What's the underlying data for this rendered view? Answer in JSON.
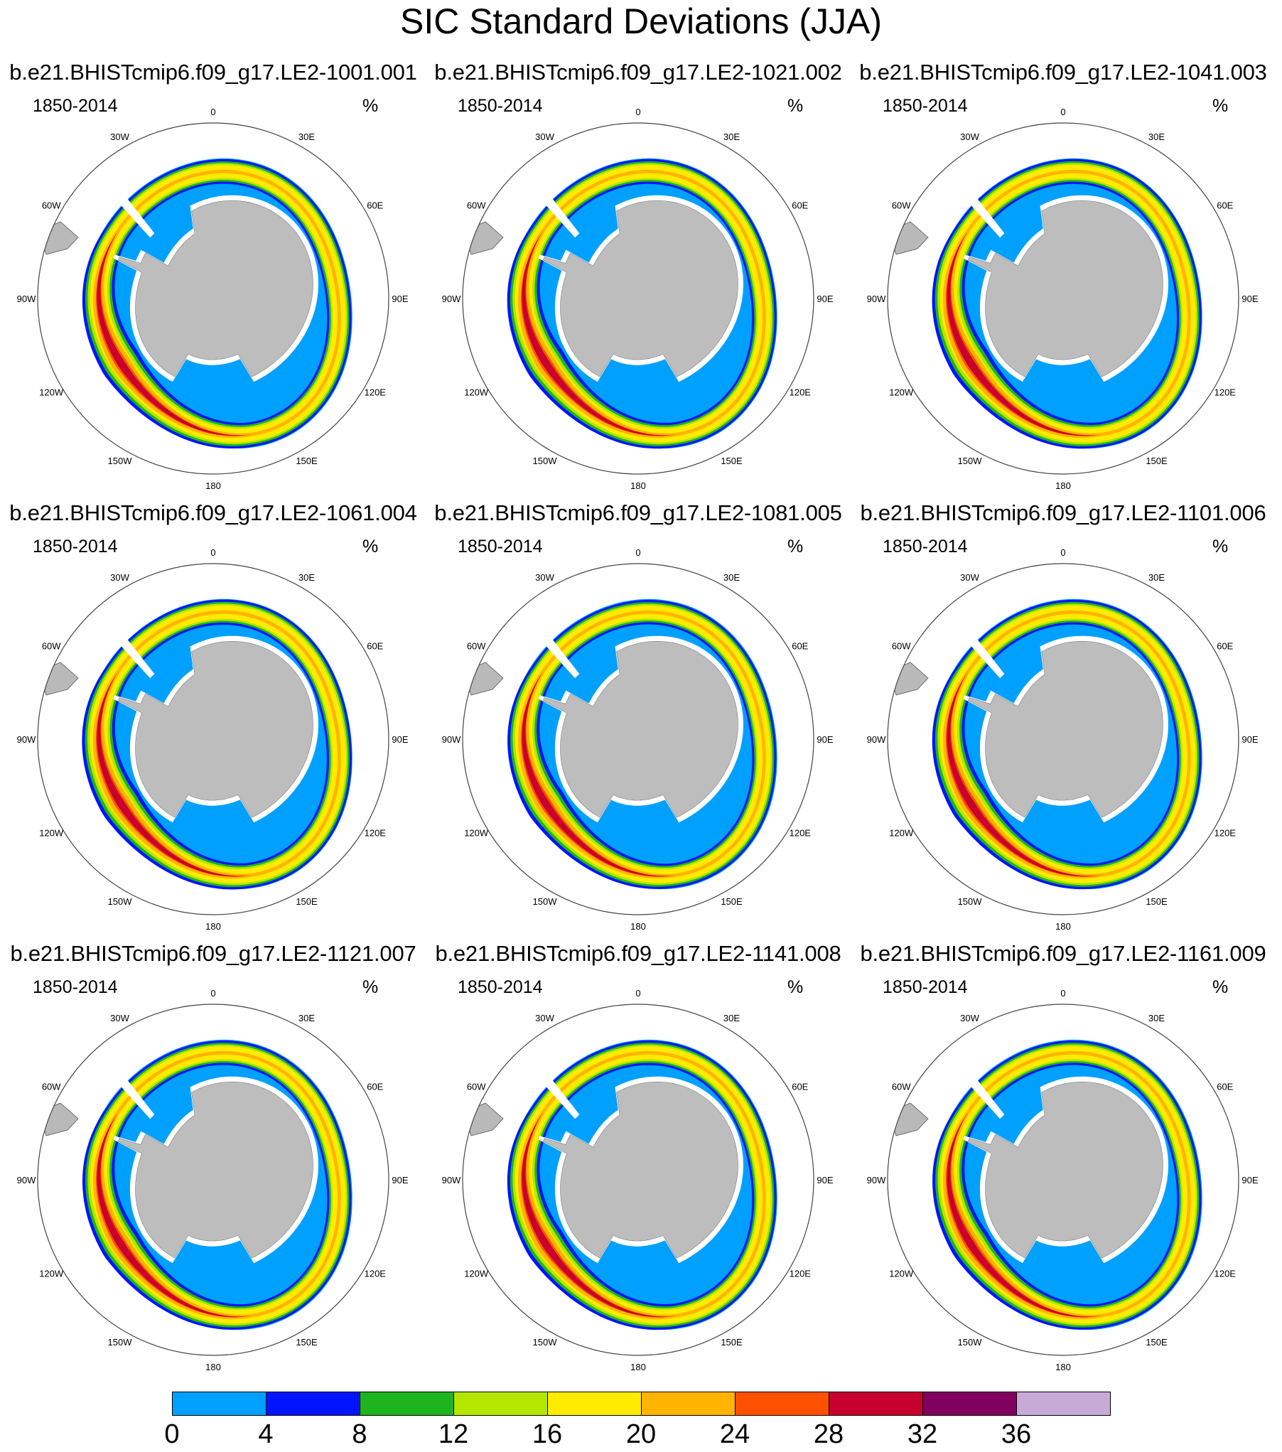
{
  "title": "SIC Standard Deviations (JJA)",
  "panels": [
    {
      "title": "b.e21.BHISTcmip6.f09_g17.LE2-1001.001",
      "left_label": "1850-2014",
      "right_label": "%",
      "intensity": 0.82
    },
    {
      "title": "b.e21.BHISTcmip6.f09_g17.LE2-1021.002",
      "left_label": "1850-2014",
      "right_label": "%",
      "intensity": 0.85
    },
    {
      "title": "b.e21.BHISTcmip6.f09_g17.LE2-1041.003",
      "left_label": "1850-2014",
      "right_label": "%",
      "intensity": 0.88
    },
    {
      "title": "b.e21.BHISTcmip6.f09_g17.LE2-1061.004",
      "left_label": "1850-2014",
      "right_label": "%",
      "intensity": 0.92
    },
    {
      "title": "b.e21.BHISTcmip6.f09_g17.LE2-1081.005",
      "left_label": "1850-2014",
      "right_label": "%",
      "intensity": 0.78
    },
    {
      "title": "b.e21.BHISTcmip6.f09_g17.LE2-1101.006",
      "left_label": "1850-2014",
      "right_label": "%",
      "intensity": 0.84
    },
    {
      "title": "b.e21.BHISTcmip6.f09_g17.LE2-1121.007",
      "left_label": "1850-2014",
      "right_label": "%",
      "intensity": 0.8
    },
    {
      "title": "b.e21.BHISTcmip6.f09_g17.LE2-1141.008",
      "left_label": "1850-2014",
      "right_label": "%",
      "intensity": 0.83
    },
    {
      "title": "b.e21.BHISTcmip6.f09_g17.LE2-1161.009",
      "left_label": "1850-2014",
      "right_label": "%",
      "intensity": 0.79
    }
  ],
  "longitude_labels": [
    "0",
    "30E",
    "60E",
    "90E",
    "120E",
    "150E",
    "180",
    "150W",
    "120W",
    "90W",
    "60W",
    "30W"
  ],
  "colorbar": {
    "levels": [
      "0",
      "4",
      "8",
      "12",
      "16",
      "20",
      "24",
      "28",
      "32",
      "36"
    ],
    "colors": [
      "#00a0ff",
      "#0014ff",
      "#1eb41e",
      "#b4e600",
      "#ffeb00",
      "#ffb400",
      "#ff5000",
      "#c8002d",
      "#82005f",
      "#c8aad7"
    ]
  }
}
